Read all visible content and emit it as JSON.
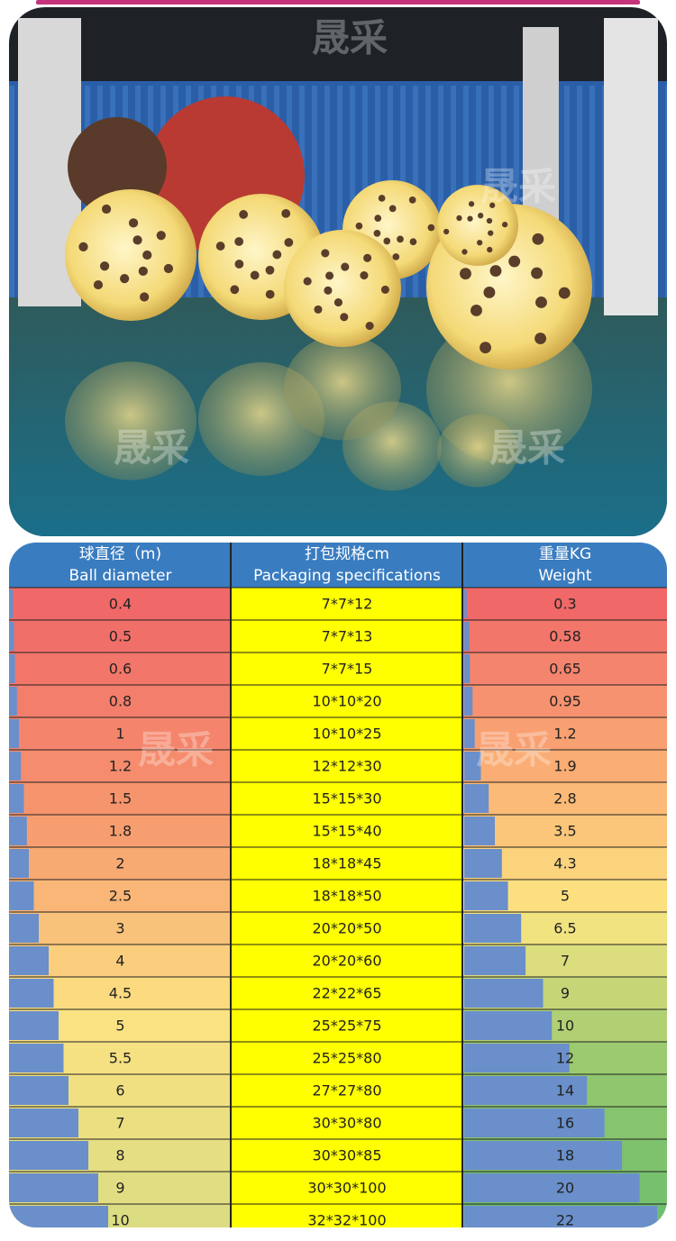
{
  "watermark": "晟采",
  "table": {
    "headers": [
      [
        "球直径（m)",
        "Ball diameter"
      ],
      [
        "打包规格cm",
        "Packaging specifications"
      ],
      [
        "重量KG",
        "Weight"
      ]
    ],
    "rows": [
      [
        0.4,
        "7*7*12",
        0.3
      ],
      [
        0.5,
        "7*7*13",
        0.58
      ],
      [
        0.6,
        "7*7*15",
        0.65
      ],
      [
        0.8,
        "10*10*20",
        0.95
      ],
      [
        1,
        "10*10*25",
        1.2
      ],
      [
        1.2,
        "12*12*30",
        1.9
      ],
      [
        1.5,
        "15*15*30",
        2.8
      ],
      [
        1.8,
        "15*15*40",
        3.5
      ],
      [
        2,
        "18*18*45",
        4.3
      ],
      [
        2.5,
        "18*18*50",
        5
      ],
      [
        3,
        "20*20*50",
        6.5
      ],
      [
        4,
        "20*20*60",
        7
      ],
      [
        4.5,
        "22*22*65",
        9
      ],
      [
        5,
        "25*25*75",
        10
      ],
      [
        5.5,
        "25*25*80",
        12
      ],
      [
        6,
        "27*27*80",
        14
      ],
      [
        7,
        "30*30*80",
        16
      ],
      [
        8,
        "30*30*85",
        18
      ],
      [
        9,
        "30*30*100",
        20
      ],
      [
        10,
        "32*32*100",
        22
      ]
    ]
  }
}
